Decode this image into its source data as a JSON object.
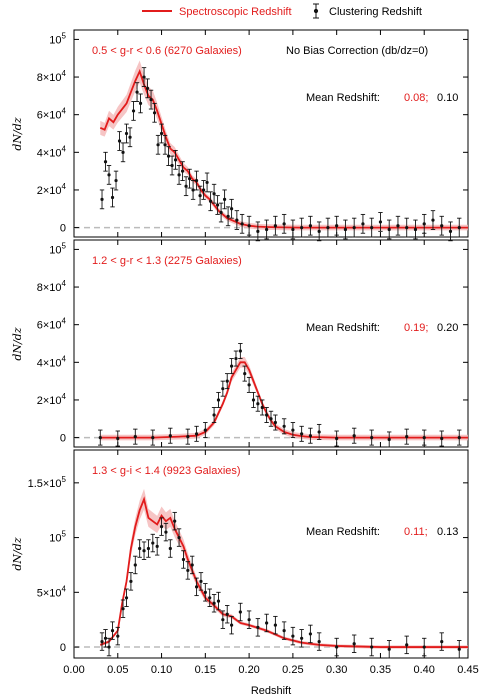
{
  "legend": {
    "spec_label": "Spectroscopic Redshift",
    "clus_label": "Clustering Redshift"
  },
  "colors": {
    "spec": "#e21c1c",
    "spec_band": "#f4b7b7",
    "clus": "#111111",
    "zero_line": "#bbbbbb"
  },
  "x_axis": {
    "label": "Redshift",
    "ticks": [
      "0.00",
      "0.05",
      "0.10",
      "0.15",
      "0.20",
      "0.25",
      "0.30",
      "0.35",
      "0.40",
      "0.45"
    ]
  },
  "y_axis_label": "dN/dz",
  "panels": [
    {
      "title": "0.5 < g-r < 0.6 (6270 Galaxies)",
      "note": "No Bias Correction (db/dz=0)",
      "mean_label": "Mean Redshift:",
      "mean_spec": "0.08;",
      "mean_clus": "0.10"
    },
    {
      "title": "1.2 < g-r < 1.3 (2275 Galaxies)",
      "mean_label": "Mean Redshift:",
      "mean_spec": "0.19;",
      "mean_clus": "0.20"
    },
    {
      "title": "1.3 < g-i < 1.4 (9923 Galaxies)",
      "mean_label": "Mean Redshift:",
      "mean_spec": "0.11;",
      "mean_clus": "0.13"
    }
  ],
  "chart_data": [
    {
      "type": "line",
      "title": "0.5 < g-r < 0.6 (6270 Galaxies)",
      "xlabel": "Redshift",
      "ylabel": "dN/dz",
      "xlim": [
        0,
        0.45
      ],
      "ylim": [
        -5000,
        105000
      ],
      "yticks": [
        0,
        20000,
        40000,
        60000,
        80000,
        100000
      ],
      "ytick_labels": [
        "0",
        "2×10^4",
        "4×10^4",
        "6×10^4",
        "8×10^4",
        "10^5"
      ],
      "series": [
        {
          "name": "Spectroscopic Redshift",
          "x": [
            0.03,
            0.035,
            0.04,
            0.045,
            0.05,
            0.055,
            0.06,
            0.065,
            0.07,
            0.075,
            0.08,
            0.085,
            0.09,
            0.095,
            0.1,
            0.105,
            0.11,
            0.115,
            0.12,
            0.125,
            0.13,
            0.135,
            0.14,
            0.145,
            0.15,
            0.155,
            0.16,
            0.165,
            0.17,
            0.175,
            0.18,
            0.185,
            0.19,
            0.195,
            0.2,
            0.21,
            0.22,
            0.23,
            0.24,
            0.26,
            0.28,
            0.3,
            0.33,
            0.36,
            0.4,
            0.45
          ],
          "y": [
            53000,
            52000,
            58000,
            56000,
            60000,
            63000,
            66000,
            72000,
            78000,
            83000,
            76000,
            70000,
            68000,
            62000,
            55000,
            48000,
            42000,
            40000,
            36000,
            32000,
            30000,
            26000,
            24000,
            20000,
            17000,
            15000,
            12000,
            9000,
            7000,
            5000,
            4000,
            3000,
            2000,
            1500,
            1000,
            500,
            300,
            200,
            100,
            0,
            0,
            0,
            0,
            0,
            0,
            0
          ]
        },
        {
          "name": "Clustering Redshift",
          "x": [
            0.032,
            0.036,
            0.04,
            0.044,
            0.048,
            0.052,
            0.056,
            0.06,
            0.064,
            0.068,
            0.072,
            0.076,
            0.08,
            0.084,
            0.088,
            0.092,
            0.096,
            0.1,
            0.104,
            0.108,
            0.112,
            0.116,
            0.12,
            0.124,
            0.128,
            0.132,
            0.136,
            0.14,
            0.144,
            0.148,
            0.152,
            0.156,
            0.16,
            0.164,
            0.168,
            0.172,
            0.176,
            0.18,
            0.186,
            0.192,
            0.2,
            0.21,
            0.22,
            0.23,
            0.24,
            0.25,
            0.26,
            0.27,
            0.28,
            0.29,
            0.3,
            0.31,
            0.32,
            0.33,
            0.34,
            0.35,
            0.36,
            0.37,
            0.38,
            0.39,
            0.4,
            0.41,
            0.42,
            0.43,
            0.44
          ],
          "y": [
            15000,
            35000,
            28000,
            16000,
            25000,
            46000,
            40000,
            50000,
            48000,
            62000,
            72000,
            66000,
            80000,
            74000,
            68000,
            61000,
            44000,
            50000,
            44000,
            38000,
            33000,
            36000,
            28000,
            30000,
            22000,
            26000,
            20000,
            25000,
            17000,
            20000,
            24000,
            14000,
            18000,
            12000,
            8000,
            15000,
            6000,
            10000,
            4000,
            2000,
            1000,
            -2000,
            -1000,
            1000,
            2000,
            -1000,
            0,
            1000,
            -2000,
            0,
            1000,
            -1000,
            0,
            2000,
            0,
            3000,
            -1000,
            1000,
            0,
            -1000,
            2000,
            4000,
            1000,
            -2000,
            0
          ],
          "yerr": 5000
        }
      ]
    },
    {
      "type": "line",
      "title": "1.2 < g-r < 1.3 (2275 Galaxies)",
      "xlabel": "Redshift",
      "ylabel": "dN/dz",
      "xlim": [
        0,
        0.45
      ],
      "ylim": [
        -5000,
        105000
      ],
      "yticks": [
        0,
        20000,
        40000,
        60000,
        80000,
        100000
      ],
      "ytick_labels": [
        "0",
        "2×10^4",
        "4×10^4",
        "6×10^4",
        "8×10^4",
        "10^5"
      ],
      "series": [
        {
          "name": "Spectroscopic Redshift",
          "x": [
            0.03,
            0.06,
            0.09,
            0.12,
            0.14,
            0.15,
            0.16,
            0.17,
            0.175,
            0.18,
            0.185,
            0.19,
            0.195,
            0.2,
            0.205,
            0.21,
            0.215,
            0.22,
            0.225,
            0.23,
            0.24,
            0.25,
            0.26,
            0.27,
            0.3,
            0.35,
            0.4,
            0.45
          ],
          "y": [
            0,
            0,
            0,
            500,
            1000,
            3000,
            8000,
            18000,
            24000,
            32000,
            36000,
            40000,
            40000,
            36000,
            30000,
            24000,
            18000,
            13000,
            9000,
            6000,
            3000,
            1500,
            800,
            300,
            0,
            0,
            0,
            0
          ]
        },
        {
          "name": "Clustering Redshift",
          "x": [
            0.03,
            0.05,
            0.07,
            0.09,
            0.11,
            0.13,
            0.14,
            0.15,
            0.16,
            0.165,
            0.17,
            0.175,
            0.18,
            0.185,
            0.19,
            0.195,
            0.2,
            0.205,
            0.21,
            0.215,
            0.22,
            0.225,
            0.23,
            0.24,
            0.25,
            0.26,
            0.27,
            0.28,
            0.3,
            0.32,
            0.34,
            0.36,
            0.38,
            0.4,
            0.42,
            0.44
          ],
          "y": [
            0,
            -500,
            500,
            0,
            1000,
            500,
            2000,
            4000,
            12000,
            20000,
            26000,
            30000,
            38000,
            42000,
            46000,
            34000,
            28000,
            20000,
            18000,
            16000,
            12000,
            10000,
            8000,
            6000,
            4000,
            2000,
            1000,
            3000,
            -500,
            1000,
            0,
            -1000,
            500,
            0,
            -500,
            0
          ],
          "yerr": 4000
        }
      ]
    },
    {
      "type": "line",
      "title": "1.3 < g-i < 1.4 (9923 Galaxies)",
      "xlabel": "Redshift",
      "ylabel": "dN/dz",
      "xlim": [
        0,
        0.45
      ],
      "ylim": [
        -10000,
        180000
      ],
      "yticks": [
        0,
        50000,
        100000,
        150000
      ],
      "ytick_labels": [
        "0",
        "5×10^4",
        "10^5",
        "1.5×10^5"
      ],
      "series": [
        {
          "name": "Spectroscopic Redshift",
          "x": [
            0.03,
            0.04,
            0.05,
            0.055,
            0.06,
            0.065,
            0.07,
            0.075,
            0.08,
            0.085,
            0.09,
            0.095,
            0.1,
            0.105,
            0.11,
            0.115,
            0.12,
            0.125,
            0.13,
            0.14,
            0.15,
            0.16,
            0.17,
            0.18,
            0.19,
            0.2,
            0.22,
            0.24,
            0.26,
            0.28,
            0.3,
            0.35,
            0.4,
            0.45
          ],
          "y": [
            2000,
            5000,
            15000,
            40000,
            60000,
            90000,
            110000,
            125000,
            135000,
            118000,
            115000,
            112000,
            120000,
            115000,
            118000,
            108000,
            100000,
            92000,
            80000,
            60000,
            45000,
            38000,
            30000,
            28000,
            22000,
            20000,
            15000,
            8000,
            4000,
            2000,
            1000,
            0,
            0,
            0
          ]
        },
        {
          "name": "Clustering Redshift",
          "x": [
            0.032,
            0.036,
            0.04,
            0.044,
            0.05,
            0.056,
            0.06,
            0.065,
            0.07,
            0.075,
            0.08,
            0.085,
            0.09,
            0.095,
            0.1,
            0.105,
            0.11,
            0.115,
            0.12,
            0.125,
            0.13,
            0.135,
            0.14,
            0.145,
            0.15,
            0.155,
            0.16,
            0.165,
            0.17,
            0.175,
            0.18,
            0.19,
            0.2,
            0.21,
            0.22,
            0.23,
            0.24,
            0.25,
            0.26,
            0.27,
            0.28,
            0.3,
            0.32,
            0.34,
            0.36,
            0.38,
            0.4,
            0.42,
            0.44
          ],
          "y": [
            5000,
            8000,
            0,
            15000,
            10000,
            35000,
            45000,
            60000,
            75000,
            90000,
            88000,
            90000,
            95000,
            92000,
            110000,
            105000,
            90000,
            115000,
            100000,
            80000,
            70000,
            75000,
            55000,
            60000,
            50000,
            45000,
            40000,
            42000,
            25000,
            30000,
            20000,
            32000,
            25000,
            18000,
            22000,
            20000,
            15000,
            10000,
            8000,
            12000,
            5000,
            0,
            3000,
            0,
            -2000,
            2000,
            0,
            5000,
            -2000
          ],
          "yerr": 8000
        }
      ]
    }
  ]
}
